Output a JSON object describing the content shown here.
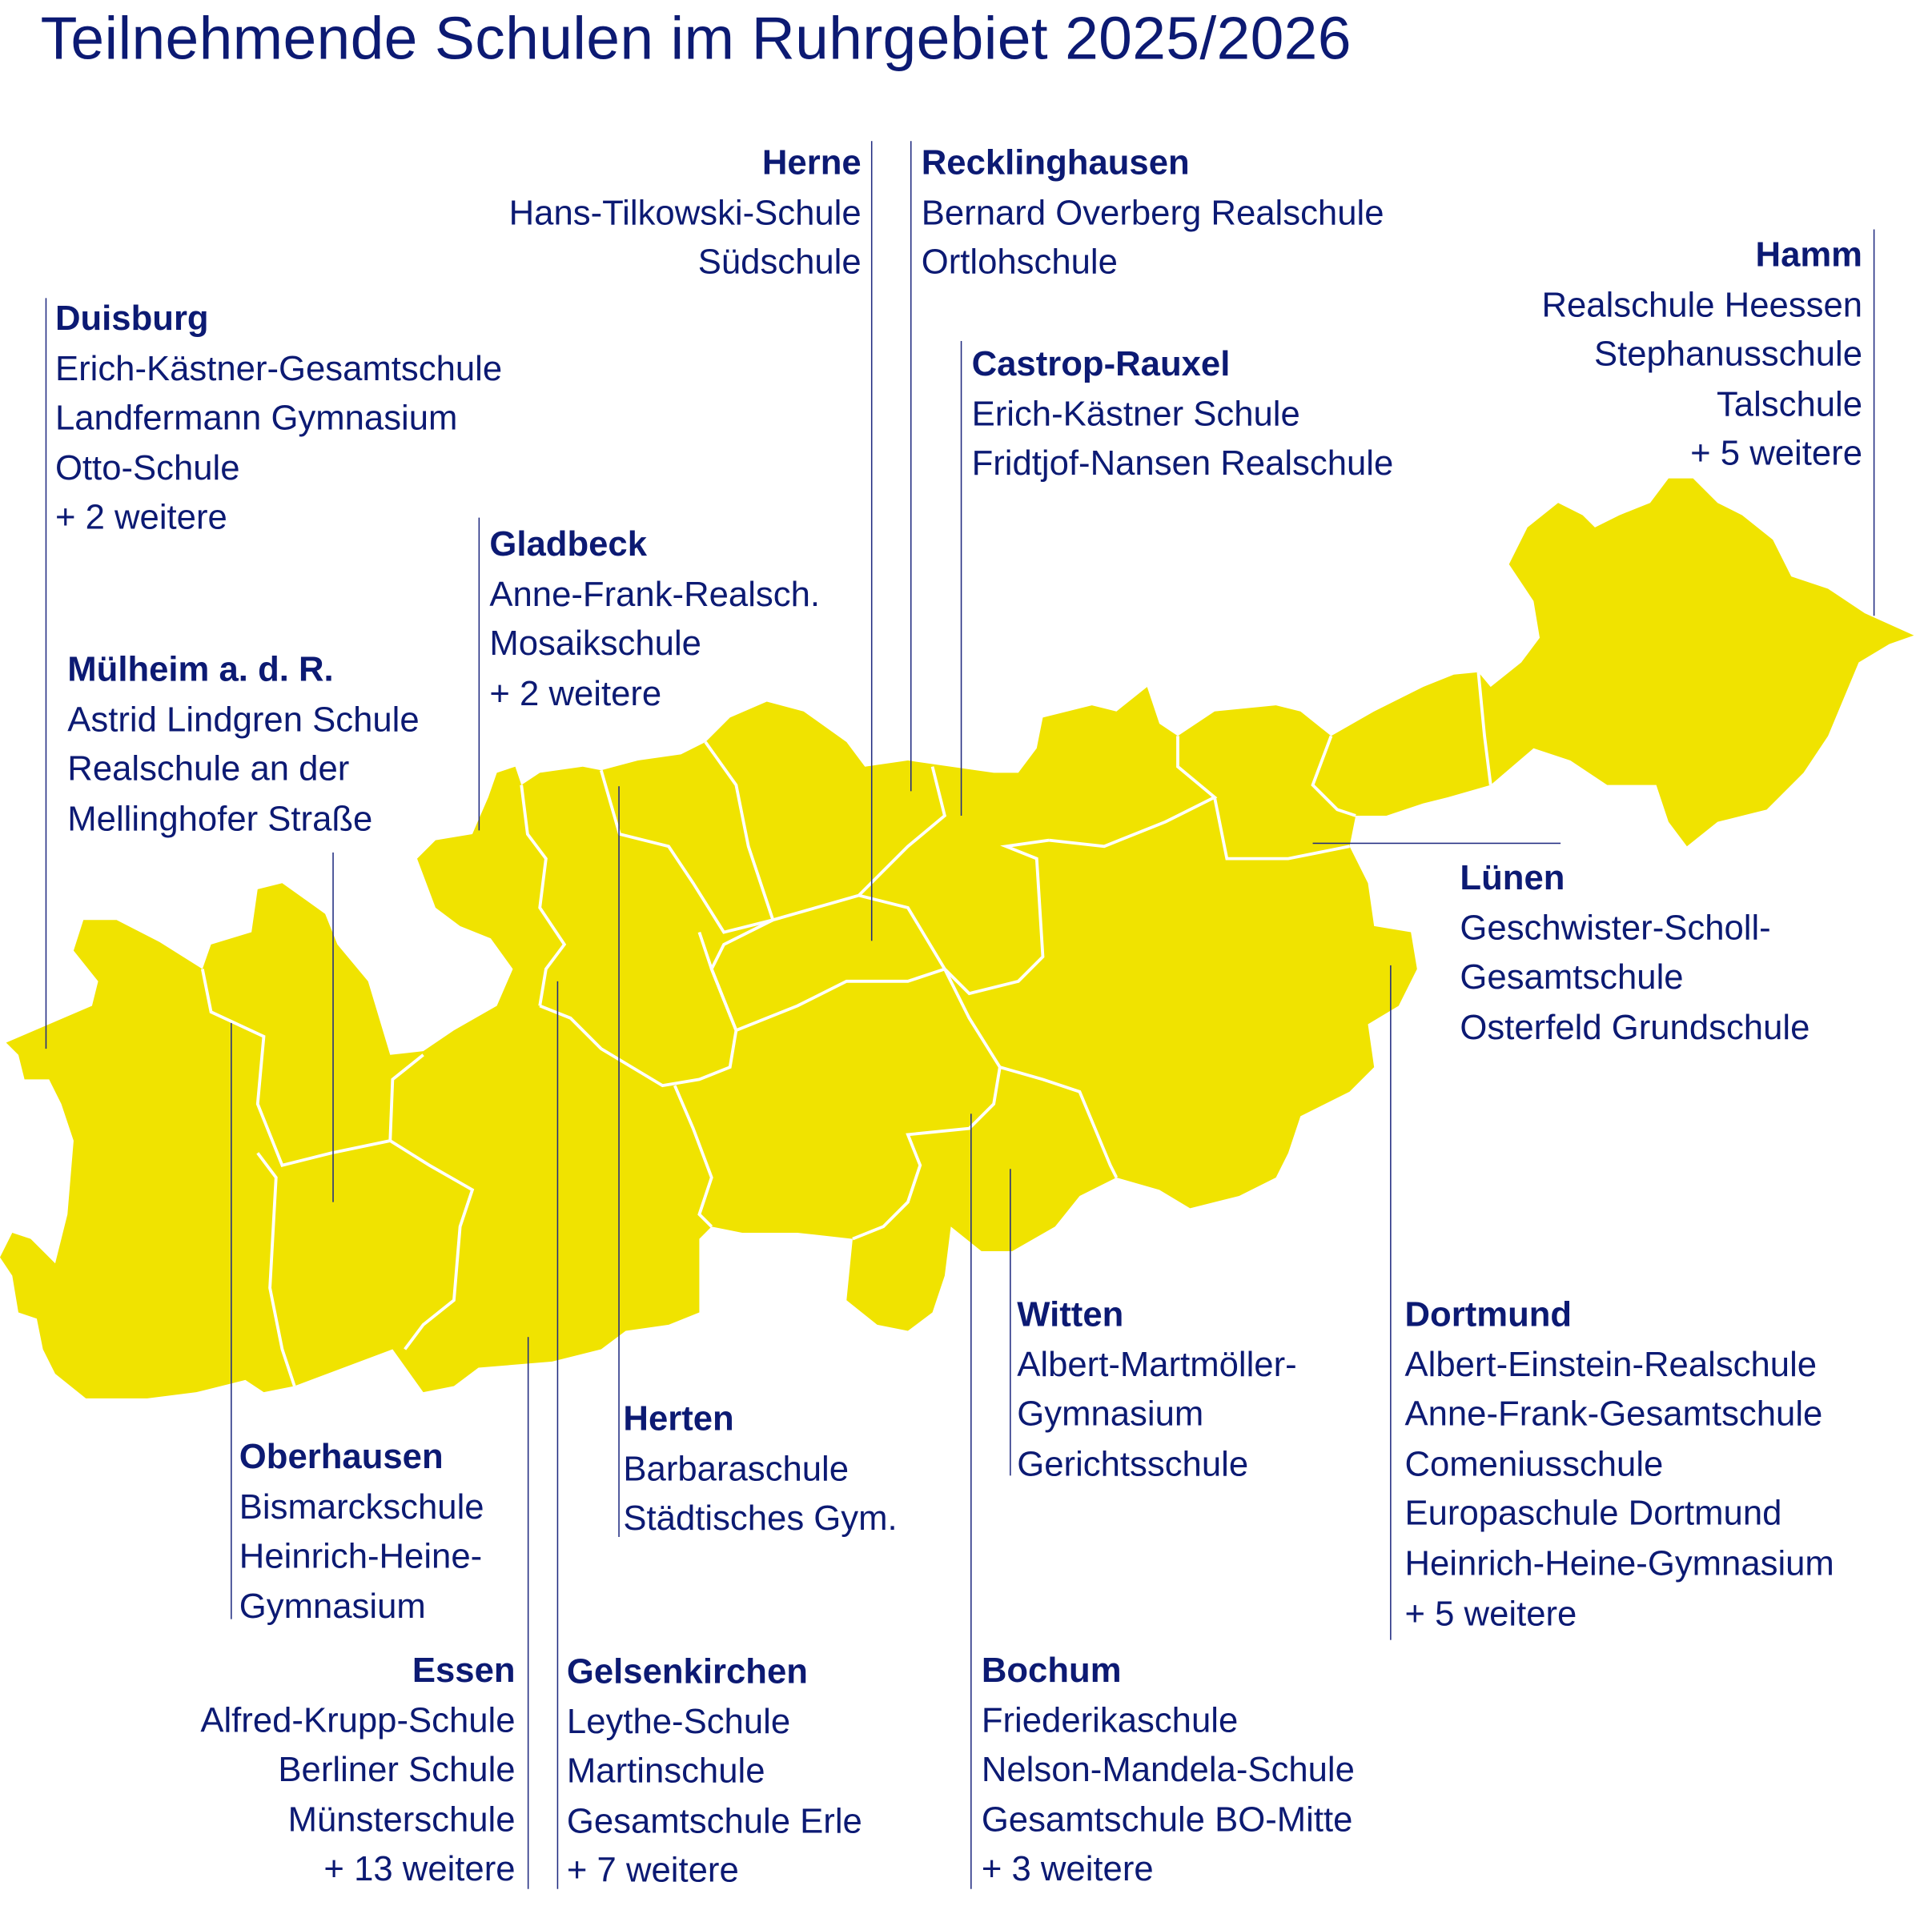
{
  "title": "Teilnehmende Schulen im Ruhrgebiet 2025/2026",
  "colors": {
    "region_fill": "#f0e300",
    "border": "#ffffff",
    "text": "#0c1a73"
  },
  "cities": [
    {
      "name": "Herne",
      "schools": [
        "Hans-Tilkowski-Schule",
        "Südschule"
      ]
    },
    {
      "name": "Recklinghausen",
      "schools": [
        "Bernard Overberg Realschule",
        "Ortlohschule"
      ]
    },
    {
      "name": "Hamm",
      "schools": [
        "Realschule Heessen",
        "Stephanusschule",
        "Talschule",
        "+ 5 weitere"
      ]
    },
    {
      "name": "Duisburg",
      "schools": [
        "Erich-Kästner-Gesamtschule",
        "Landfermann Gymnasium",
        "Otto-Schule",
        "+ 2 weitere"
      ]
    },
    {
      "name": "Castrop-Rauxel",
      "schools": [
        "Erich-Kästner Schule",
        "Fridtjof-Nansen Realschule"
      ]
    },
    {
      "name": "Gladbeck",
      "schools": [
        "Anne-Frank-Realsch.",
        "Mosaikschule",
        "+ 2 weitere"
      ]
    },
    {
      "name": "Mülheim a. d. R.",
      "schools": [
        "Astrid Lindgren Schule",
        "Realschule an der",
        "Mellinghofer Straße"
      ]
    },
    {
      "name": "Lünen",
      "schools": [
        "Geschwister-Scholl-",
        "Gesamtschule",
        "Osterfeld Grundschule"
      ]
    },
    {
      "name": "Witten",
      "schools": [
        "Albert-Martmöller-",
        "Gymnasium",
        "Gerichtsschule"
      ]
    },
    {
      "name": "Dortmund",
      "schools": [
        "Albert-Einstein-Realschule",
        "Anne-Frank-Gesamtschule",
        "Comeniusschule",
        "Europaschule Dortmund",
        "Heinrich-Heine-Gymnasium",
        "+ 5 weitere"
      ]
    },
    {
      "name": "Herten",
      "schools": [
        "Barbaraschule",
        "Städtisches Gym."
      ]
    },
    {
      "name": "Oberhausen",
      "schools": [
        "Bismarckschule",
        "Heinrich-Heine-",
        "Gymnasium"
      ]
    },
    {
      "name": "Essen",
      "schools": [
        "Alfred-Krupp-Schule",
        "Berliner Schule",
        "Münsterschule",
        "+ 13 weitere"
      ]
    },
    {
      "name": "Gelsenkirchen",
      "schools": [
        "Leythe-Schule",
        "Martinschule",
        "Gesamtschule Erle",
        "+ 7 weitere"
      ]
    },
    {
      "name": "Bochum",
      "schools": [
        "Friederikaschule",
        "Nelson-Mandela-Schule",
        "Gesamtschule BO-Mitte",
        "+ 3 weitere"
      ]
    }
  ]
}
